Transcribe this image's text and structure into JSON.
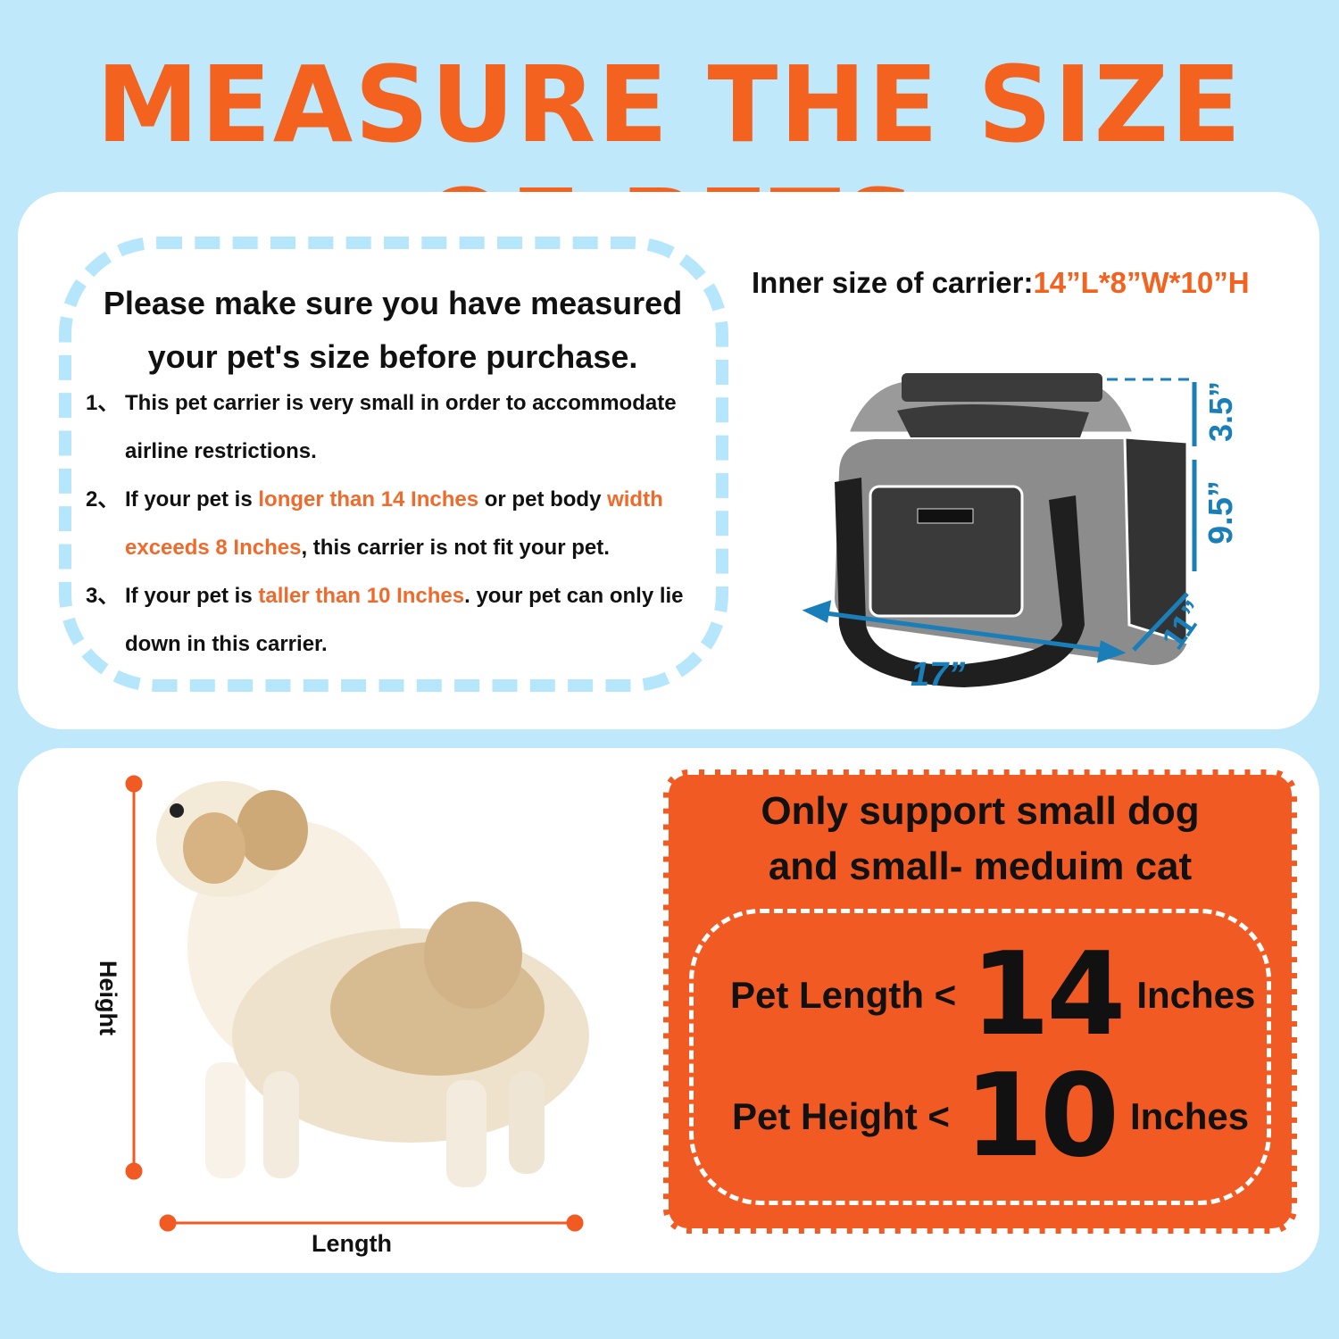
{
  "title": "MEASURE THE SIZE OF PETS",
  "notice": {
    "heading_line1": "Please make sure you have measured",
    "heading_line2": "your pet's size before purchase.",
    "items": [
      {
        "num": "1、",
        "parts": [
          {
            "t": "This pet carrier is very small in order  to accommodate airline restrictions.",
            "hl": false
          }
        ]
      },
      {
        "num": "2、",
        "parts": [
          {
            "t": "If your pet is ",
            "hl": false
          },
          {
            "t": "longer than 14 Inches",
            "hl": true
          },
          {
            "t": " or pet body ",
            "hl": false
          },
          {
            "t": "width exceeds 8 Inches",
            "hl": true
          },
          {
            "t": ", this carrier is not fit your pet.",
            "hl": false
          }
        ]
      },
      {
        "num": "3、",
        "parts": [
          {
            "t": " If your pet is ",
            "hl": false
          },
          {
            "t": "taller than 10 Inches",
            "hl": true
          },
          {
            "t": ". your pet can only lie down in this carrier.",
            "hl": false
          }
        ]
      }
    ]
  },
  "carrier": {
    "inner_label": "Inner size of carrier:",
    "inner_value": "14”L*8”W*10”H",
    "dims": {
      "length": "17”",
      "width": "11”",
      "height": "9.5”",
      "top": "3.5”"
    },
    "colors": {
      "dimension": "#1a7fb8",
      "body": "#8a8a8a",
      "mesh": "#3a3a3a"
    }
  },
  "pet": {
    "height_label": "Height",
    "length_label": "Length"
  },
  "support": {
    "line1": "Only support small dog",
    "line2": "and small- meduim cat",
    "length_label": "Pet Length <",
    "length_value": "14",
    "length_unit": "Inches",
    "height_label": "Pet Height <",
    "height_value": "10",
    "height_unit": "Inches"
  },
  "colors": {
    "accent": "#f15a22",
    "background": "#bfe9fb",
    "dash": "#b6e6fb"
  }
}
